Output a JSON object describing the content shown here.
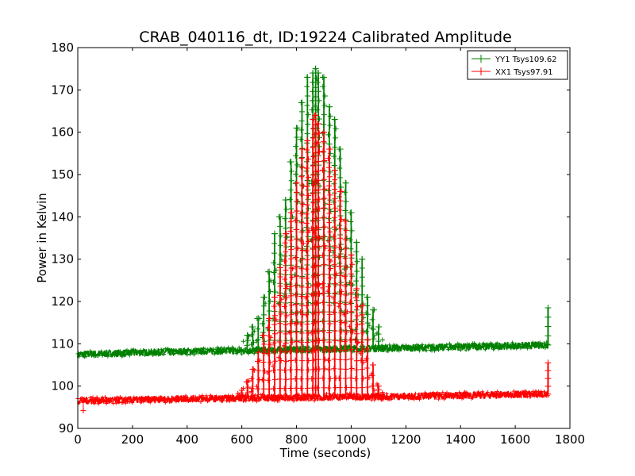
{
  "chart_data": {
    "type": "line",
    "title": "CRAB_040116_dt, ID:19224 Calibrated Amplitude",
    "xlabel": "Time (seconds)",
    "ylabel": "Power in Kelvin",
    "xlim": [
      0,
      1800
    ],
    "ylim": [
      90,
      180
    ],
    "xticks": [
      0,
      200,
      400,
      600,
      800,
      1000,
      1200,
      1400,
      1600,
      1800
    ],
    "yticks": [
      90,
      100,
      110,
      120,
      130,
      140,
      150,
      160,
      170,
      180
    ],
    "grid": false,
    "legend_position": "top-right",
    "series": [
      {
        "name": "YY1 Tsys109.62",
        "color": "#008000",
        "marker": "+",
        "baseline": [
          [
            0,
            107.5
          ],
          [
            400,
            108.2
          ],
          [
            800,
            108.6
          ],
          [
            1200,
            109.0
          ],
          [
            1720,
            109.7
          ]
        ],
        "peak_times": [
          620,
          640,
          660,
          680,
          700,
          720,
          740,
          760,
          780,
          800,
          820,
          840,
          860,
          870,
          880,
          900,
          920,
          940,
          960,
          980,
          1000,
          1020,
          1040,
          1060,
          1080,
          1100
        ],
        "peak_values": [
          112,
          114,
          116,
          121,
          127,
          136,
          140,
          144,
          153,
          161,
          167,
          173,
          174,
          175,
          174,
          173,
          166,
          163,
          156,
          148,
          141,
          134,
          130,
          121,
          118,
          114
        ],
        "end_spike": {
          "x": 1720,
          "y": 118.5
        }
      },
      {
        "name": "XX1 Tsys97.91",
        "color": "#ff0000",
        "marker": "+",
        "baseline": [
          [
            0,
            96.5
          ],
          [
            400,
            97.0
          ],
          [
            800,
            97.3
          ],
          [
            1200,
            97.6
          ],
          [
            1720,
            98.1
          ]
        ],
        "peak_times": [
          600,
          620,
          640,
          660,
          680,
          700,
          720,
          740,
          760,
          780,
          800,
          820,
          840,
          860,
          870,
          880,
          900,
          920,
          940,
          960,
          980,
          1000,
          1020,
          1040,
          1060,
          1080,
          1100
        ],
        "peak_values": [
          99,
          101,
          104,
          108,
          112,
          116,
          121,
          128,
          136,
          141,
          148,
          156,
          158,
          163,
          164,
          162,
          160,
          156,
          151,
          146,
          139,
          131,
          123,
          119,
          111,
          105,
          100
        ],
        "end_spike": {
          "x": 1720,
          "y": 105.5
        },
        "low_outlier": {
          "x": 20,
          "y": 94.2
        }
      }
    ]
  }
}
